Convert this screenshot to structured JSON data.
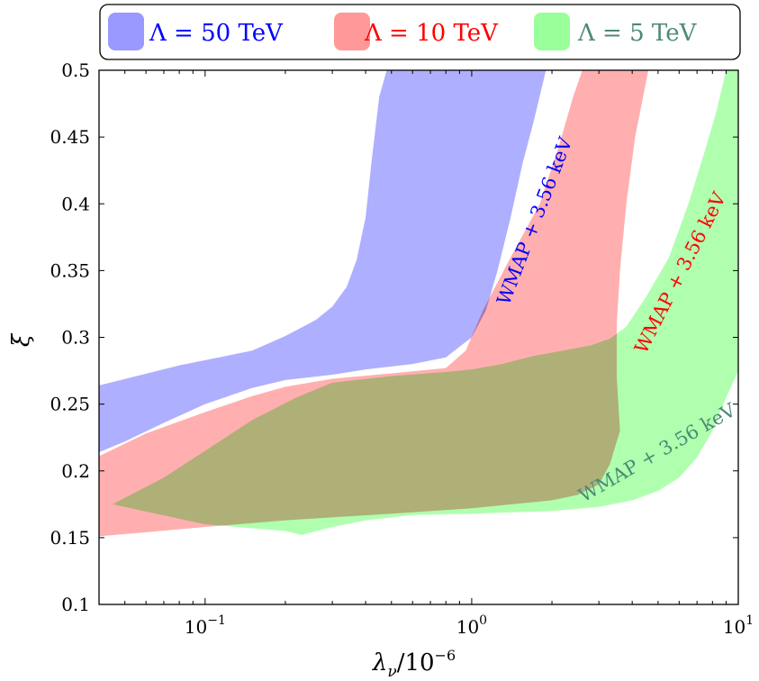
{
  "chart_data": {
    "type": "area",
    "title": "",
    "xlabel": "λ_ν/10^-6",
    "xlabel_parts": {
      "base": "λ",
      "sub": "ν",
      "mid": "/10",
      "sup": "−6"
    },
    "ylabel": "ξ",
    "xscale": "log",
    "xlim": [
      0.04,
      10
    ],
    "ylim": [
      0.1,
      0.5
    ],
    "grid": false,
    "legend_position": "top",
    "x_tick_labels": [
      {
        "value": 0.1,
        "base": "10",
        "exp": "−1"
      },
      {
        "value": 1,
        "base": "10",
        "exp": "0"
      },
      {
        "value": 10,
        "base": "10",
        "exp": "1"
      }
    ],
    "y_ticks": [
      0.1,
      0.15,
      0.2,
      0.25,
      0.3,
      0.35,
      0.4,
      0.45,
      0.5
    ],
    "y_tick_labels": [
      "0.1",
      "0.15",
      "0.2",
      "0.25",
      "0.3",
      "0.35",
      "0.4",
      "0.45",
      "0.5"
    ],
    "series": [
      {
        "name": "Λ = 50 TeV",
        "legend_label": "Λ = 50 TeV",
        "legend_prefix": "Λ =",
        "legend_value": "50 TeV",
        "fill": "#9999ff",
        "text_color": "#0000ff",
        "annotation": "WMAP + 3.56 keV",
        "upper": [
          [
            0.04,
            0.264
          ],
          [
            0.08,
            0.279
          ],
          [
            0.15,
            0.29
          ],
          [
            0.2,
            0.301
          ],
          [
            0.26,
            0.313
          ],
          [
            0.3,
            0.323
          ],
          [
            0.34,
            0.338
          ],
          [
            0.37,
            0.358
          ],
          [
            0.4,
            0.39
          ],
          [
            0.42,
            0.43
          ],
          [
            0.45,
            0.48
          ],
          [
            0.48,
            0.5
          ]
        ],
        "lower_right": [
          [
            1.9,
            0.5
          ],
          [
            1.7,
            0.46
          ],
          [
            1.55,
            0.43
          ],
          [
            1.4,
            0.39
          ],
          [
            1.25,
            0.35
          ],
          [
            1.13,
            0.32
          ],
          [
            1.0,
            0.3
          ],
          [
            0.8,
            0.285
          ],
          [
            0.6,
            0.28
          ],
          [
            0.4,
            0.276
          ],
          [
            0.3,
            0.272
          ],
          [
            0.2,
            0.268
          ],
          [
            0.15,
            0.262
          ],
          [
            0.1,
            0.25
          ],
          [
            0.07,
            0.236
          ],
          [
            0.05,
            0.222
          ],
          [
            0.04,
            0.214
          ]
        ]
      },
      {
        "name": "Λ = 10 TeV",
        "legend_label": "Λ = 10 TeV",
        "legend_prefix": "Λ =",
        "legend_value": "10 TeV",
        "fill": "#ff9999",
        "text_color": "#ff0000",
        "annotation": "WMAP + 3.56 keV",
        "upper": [
          [
            0.04,
            0.211
          ],
          [
            0.06,
            0.228
          ],
          [
            0.1,
            0.244
          ],
          [
            0.15,
            0.256
          ],
          [
            0.2,
            0.263
          ],
          [
            0.3,
            0.269
          ],
          [
            0.5,
            0.273
          ],
          [
            0.8,
            0.277
          ],
          [
            0.95,
            0.29
          ],
          [
            1.1,
            0.32
          ],
          [
            1.4,
            0.36
          ],
          [
            1.8,
            0.4
          ],
          [
            2.1,
            0.44
          ],
          [
            2.4,
            0.48
          ],
          [
            2.6,
            0.5
          ]
        ],
        "lower_right": [
          [
            4.6,
            0.5
          ],
          [
            4.1,
            0.45
          ],
          [
            3.8,
            0.4
          ],
          [
            3.6,
            0.35
          ],
          [
            3.5,
            0.31
          ],
          [
            3.5,
            0.27
          ],
          [
            3.6,
            0.23
          ],
          [
            3.3,
            0.205
          ],
          [
            3,
            0.19
          ],
          [
            2.5,
            0.182
          ],
          [
            2,
            0.178
          ],
          [
            1,
            0.172
          ],
          [
            0.5,
            0.168
          ],
          [
            0.2,
            0.163
          ],
          [
            0.1,
            0.158
          ],
          [
            0.06,
            0.154
          ],
          [
            0.04,
            0.151
          ]
        ]
      },
      {
        "name": "Λ = 5 TeV",
        "legend_label": "Λ = 5  TeV",
        "legend_prefix": "Λ =",
        "legend_value": "5  TeV",
        "fill": "#99ff99",
        "text_color": "#4c8a73",
        "annotation": "WMAP + 3.56 keV",
        "upper": [
          [
            0.045,
            0.175
          ],
          [
            0.07,
            0.195
          ],
          [
            0.1,
            0.215
          ],
          [
            0.15,
            0.238
          ],
          [
            0.22,
            0.255
          ],
          [
            0.3,
            0.266
          ],
          [
            0.5,
            0.271
          ],
          [
            0.8,
            0.274
          ],
          [
            1,
            0.276
          ],
          [
            1.3,
            0.28
          ],
          [
            1.7,
            0.286
          ],
          [
            2.2,
            0.29
          ],
          [
            2.8,
            0.294
          ],
          [
            3.3,
            0.299
          ],
          [
            3.8,
            0.308
          ],
          [
            4.5,
            0.33
          ],
          [
            5.5,
            0.36
          ],
          [
            6.5,
            0.4
          ],
          [
            7.5,
            0.44
          ],
          [
            8.3,
            0.47
          ],
          [
            9,
            0.5
          ],
          [
            10,
            0.5
          ]
        ],
        "lower_right": [
          [
            10,
            0.275
          ],
          [
            9,
            0.255
          ],
          [
            8,
            0.23
          ],
          [
            7,
            0.21
          ],
          [
            6,
            0.195
          ],
          [
            5,
            0.185
          ],
          [
            4,
            0.178
          ],
          [
            3,
            0.173
          ],
          [
            2,
            0.17
          ],
          [
            1,
            0.168
          ],
          [
            0.6,
            0.167
          ],
          [
            0.4,
            0.163
          ],
          [
            0.3,
            0.158
          ],
          [
            0.23,
            0.152
          ],
          [
            0.2,
            0.155
          ],
          [
            0.1,
            0.16
          ],
          [
            0.045,
            0.175
          ]
        ]
      }
    ]
  }
}
